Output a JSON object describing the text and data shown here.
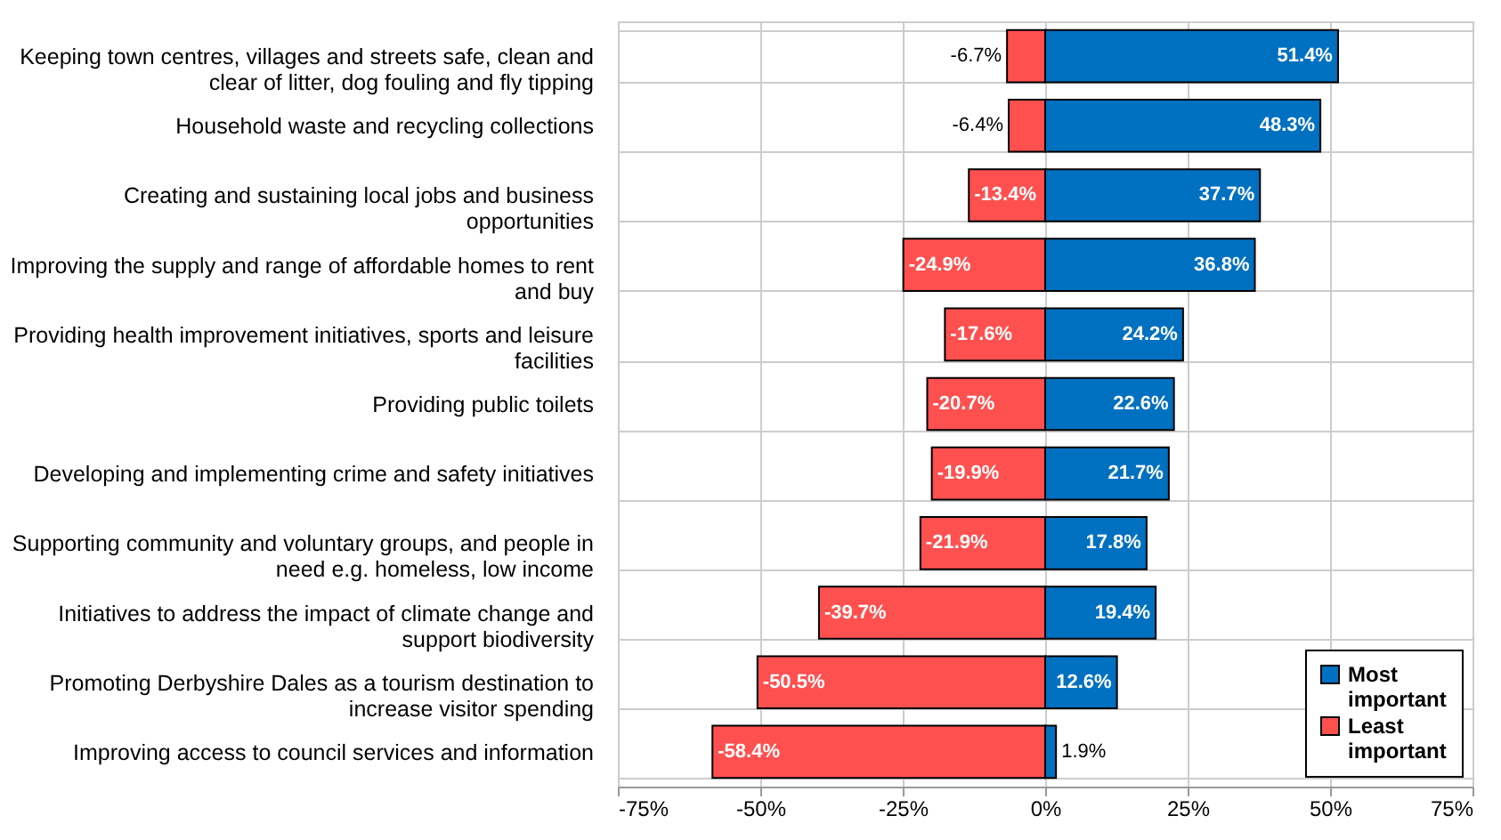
{
  "chart_data": {
    "type": "bar",
    "orientation": "horizontal",
    "categories": [
      "Keeping town centres, villages and streets safe, clean and clear of litter, dog fouling and fly tipping",
      "Household waste and recycling collections",
      "Creating and sustaining local jobs and business opportunities",
      "Improving the supply and range of affordable homes to rent and buy",
      "Providing health improvement initiatives, sports and leisure facilities",
      "Providing public toilets",
      "Developing and implementing crime and safety initiatives",
      "Supporting community and voluntary groups, and people in need e.g. homeless, low income",
      "Initiatives to address the impact of climate change and support biodiversity",
      "Promoting Derbyshire Dales as a tourism destination to increase visitor spending",
      "Improving access to council services and information"
    ],
    "series": [
      {
        "name": "Most important",
        "color": "#0070c0",
        "values": [
          51.4,
          48.3,
          37.7,
          36.8,
          24.2,
          22.6,
          21.7,
          17.8,
          19.4,
          12.6,
          1.9
        ],
        "value_labels": [
          "51.4%",
          "48.3%",
          "37.7%",
          "36.8%",
          "24.2%",
          "22.6%",
          "21.7%",
          "17.8%",
          "19.4%",
          "12.6%",
          "1.9%"
        ]
      },
      {
        "name": "Least important",
        "color": "#ff5050",
        "values": [
          -6.7,
          -6.4,
          -13.4,
          -24.9,
          -17.6,
          -20.7,
          -19.9,
          -21.9,
          -39.7,
          -50.5,
          -58.4
        ],
        "value_labels": [
          "-6.7%",
          "-6.4%",
          "-13.4%",
          "-24.9%",
          "-17.6%",
          "-20.7%",
          "-19.9%",
          "-21.9%",
          "-39.7%",
          "-50.5%",
          "-58.4%"
        ]
      }
    ],
    "xlim": [
      -75,
      75
    ],
    "xticks": [
      {
        "value": -75,
        "label": "-75%"
      },
      {
        "value": -50,
        "label": "-50%"
      },
      {
        "value": -25,
        "label": "-25%"
      },
      {
        "value": 0,
        "label": "0%"
      },
      {
        "value": 25,
        "label": "25%"
      },
      {
        "value": 50,
        "label": "50%"
      },
      {
        "value": 75,
        "label": "75%"
      }
    ],
    "grid": true,
    "legend": "bottom right",
    "stacked": true
  }
}
